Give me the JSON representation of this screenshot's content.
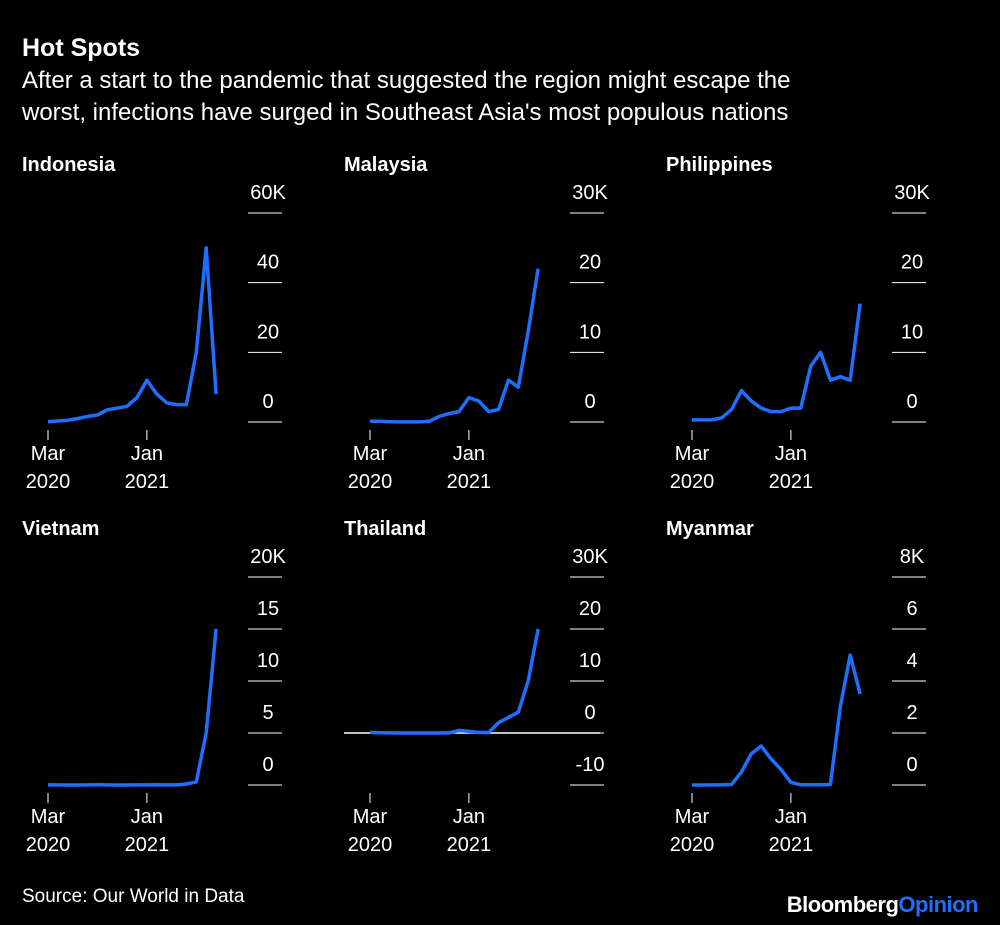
{
  "title": "Hot Spots",
  "subtitle": [
    "After a start to the pandemic that suggested the region might escape the",
    "worst, infections have surged in Southeast Asia's most populous nations"
  ],
  "source": "Source: Our World in Data",
  "logo": [
    "Bloomberg",
    "Opinion"
  ],
  "chart_data": [
    {
      "type": "line",
      "title": "Indonesia",
      "color": "#1f6fff",
      "x": [
        "2020-03",
        "2020-04",
        "2020-05",
        "2020-06",
        "2020-07",
        "2020-08",
        "2020-09",
        "2020-10",
        "2020-11",
        "2020-12",
        "2021-01",
        "2021-02",
        "2021-03",
        "2021-04",
        "2021-05",
        "2021-06",
        "2021-07",
        "2021-08"
      ],
      "values": [
        100,
        300,
        500,
        1000,
        1600,
        2000,
        3500,
        4000,
        4500,
        7000,
        12000,
        8000,
        5500,
        5000,
        5000,
        20000,
        50000,
        8000
      ],
      "xlim": [
        "2020-03",
        "2021-09"
      ],
      "xticks": [
        {
          "value": "2020-03",
          "label": "Mar 2020"
        },
        {
          "value": "2021-01",
          "label": "Jan 2021"
        }
      ],
      "ylim": [
        0,
        60000
      ],
      "yticks": [
        0,
        {
          "value": 20000,
          "label": "20"
        },
        {
          "value": 40000,
          "label": "40"
        },
        {
          "value": 60000,
          "label": "60K"
        }
      ]
    },
    {
      "type": "line",
      "title": "Malaysia",
      "color": "#1f6fff",
      "x": [
        "2020-03",
        "2020-04",
        "2020-05",
        "2020-06",
        "2020-07",
        "2020-08",
        "2020-09",
        "2020-10",
        "2020-11",
        "2020-12",
        "2021-01",
        "2021-02",
        "2021-03",
        "2021-04",
        "2021-05",
        "2021-06",
        "2021-07",
        "2021-08"
      ],
      "values": [
        100,
        100,
        50,
        20,
        10,
        20,
        100,
        800,
        1200,
        1500,
        3500,
        3000,
        1500,
        1800,
        6000,
        5000,
        13000,
        22000
      ],
      "xlim": [
        "2020-03",
        "2021-09"
      ],
      "xticks": [
        {
          "value": "2020-03",
          "label": "Mar 2020"
        },
        {
          "value": "2021-01",
          "label": "Jan 2021"
        }
      ],
      "ylim": [
        0,
        30000
      ],
      "yticks": [
        0,
        {
          "value": 10000,
          "label": "10"
        },
        {
          "value": 20000,
          "label": "20"
        },
        {
          "value": 30000,
          "label": "30K"
        }
      ]
    },
    {
      "type": "line",
      "title": "Philippines",
      "color": "#1f6fff",
      "x": [
        "2020-03",
        "2020-04",
        "2020-05",
        "2020-06",
        "2020-07",
        "2020-08",
        "2020-09",
        "2020-10",
        "2020-11",
        "2020-12",
        "2021-01",
        "2021-02",
        "2021-03",
        "2021-04",
        "2021-05",
        "2021-06",
        "2021-07",
        "2021-08"
      ],
      "values": [
        300,
        300,
        300,
        600,
        1800,
        4500,
        3000,
        2000,
        1500,
        1500,
        2000,
        2000,
        8000,
        10000,
        6000,
        6500,
        6000,
        17000
      ],
      "xlim": [
        "2020-03",
        "2021-09"
      ],
      "xticks": [
        {
          "value": "2020-03",
          "label": "Mar 2020"
        },
        {
          "value": "2021-01",
          "label": "Jan 2021"
        }
      ],
      "ylim": [
        0,
        30000
      ],
      "yticks": [
        0,
        {
          "value": 10000,
          "label": "10"
        },
        {
          "value": 20000,
          "label": "20"
        },
        {
          "value": 30000,
          "label": "30K"
        }
      ]
    },
    {
      "type": "line",
      "title": "Vietnam",
      "color": "#1f6fff",
      "x": [
        "2020-03",
        "2020-04",
        "2020-05",
        "2020-06",
        "2020-07",
        "2020-08",
        "2020-09",
        "2020-10",
        "2020-11",
        "2020-12",
        "2021-01",
        "2021-02",
        "2021-03",
        "2021-04",
        "2021-05",
        "2021-06",
        "2021-07",
        "2021-08"
      ],
      "values": [
        10,
        10,
        0,
        0,
        5,
        20,
        5,
        0,
        0,
        5,
        10,
        30,
        10,
        10,
        100,
        300,
        5000,
        15000
      ],
      "xlim": [
        "2020-03",
        "2021-09"
      ],
      "xticks": [
        {
          "value": "2020-03",
          "label": "Mar 2020"
        },
        {
          "value": "2021-01",
          "label": "Jan 2021"
        }
      ],
      "ylim": [
        0,
        20000
      ],
      "yticks": [
        0,
        {
          "value": 5000,
          "label": "5"
        },
        {
          "value": 10000,
          "label": "10"
        },
        {
          "value": 15000,
          "label": "15"
        },
        {
          "value": 20000,
          "label": "20K"
        }
      ]
    },
    {
      "type": "line",
      "title": "Thailand",
      "color": "#1f6fff",
      "zeroline": true,
      "x": [
        "2020-03",
        "2020-04",
        "2020-05",
        "2020-06",
        "2020-07",
        "2020-08",
        "2020-09",
        "2020-10",
        "2020-11",
        "2020-12",
        "2021-01",
        "2021-02",
        "2021-03",
        "2021-04",
        "2021-05",
        "2021-06",
        "2021-07",
        "2021-08"
      ],
      "values": [
        100,
        50,
        10,
        5,
        5,
        5,
        5,
        5,
        10,
        500,
        300,
        100,
        100,
        2000,
        3000,
        4000,
        10000,
        20000
      ],
      "xlim": [
        "2020-03",
        "2021-09"
      ],
      "xticks": [
        {
          "value": "2020-03",
          "label": "Mar 2020"
        },
        {
          "value": "2021-01",
          "label": "Jan 2021"
        }
      ],
      "ylim": [
        -10000,
        30000
      ],
      "yticks": [
        {
          "value": -10000,
          "label": "-10"
        },
        0,
        {
          "value": 10000,
          "label": "10"
        },
        {
          "value": 20000,
          "label": "20"
        },
        {
          "value": 30000,
          "label": "30K"
        }
      ]
    },
    {
      "type": "line",
      "title": "Myanmar",
      "color": "#1f6fff",
      "x": [
        "2020-03",
        "2020-04",
        "2020-05",
        "2020-06",
        "2020-07",
        "2020-08",
        "2020-09",
        "2020-10",
        "2020-11",
        "2020-12",
        "2021-01",
        "2021-02",
        "2021-03",
        "2021-04",
        "2021-05",
        "2021-06",
        "2021-07",
        "2021-08"
      ],
      "values": [
        0,
        0,
        5,
        5,
        20,
        500,
        1200,
        1500,
        1000,
        600,
        100,
        10,
        10,
        10,
        20,
        3000,
        5000,
        3500
      ],
      "xlim": [
        "2020-03",
        "2021-09"
      ],
      "xticks": [
        {
          "value": "2020-03",
          "label": "Mar 2020"
        },
        {
          "value": "2021-01",
          "label": "Jan 2021"
        }
      ],
      "ylim": [
        0,
        8000
      ],
      "yticks": [
        0,
        {
          "value": 2000,
          "label": "2"
        },
        {
          "value": 4000,
          "label": "4"
        },
        {
          "value": 6000,
          "label": "6"
        },
        {
          "value": 8000,
          "label": "8K"
        }
      ]
    }
  ]
}
